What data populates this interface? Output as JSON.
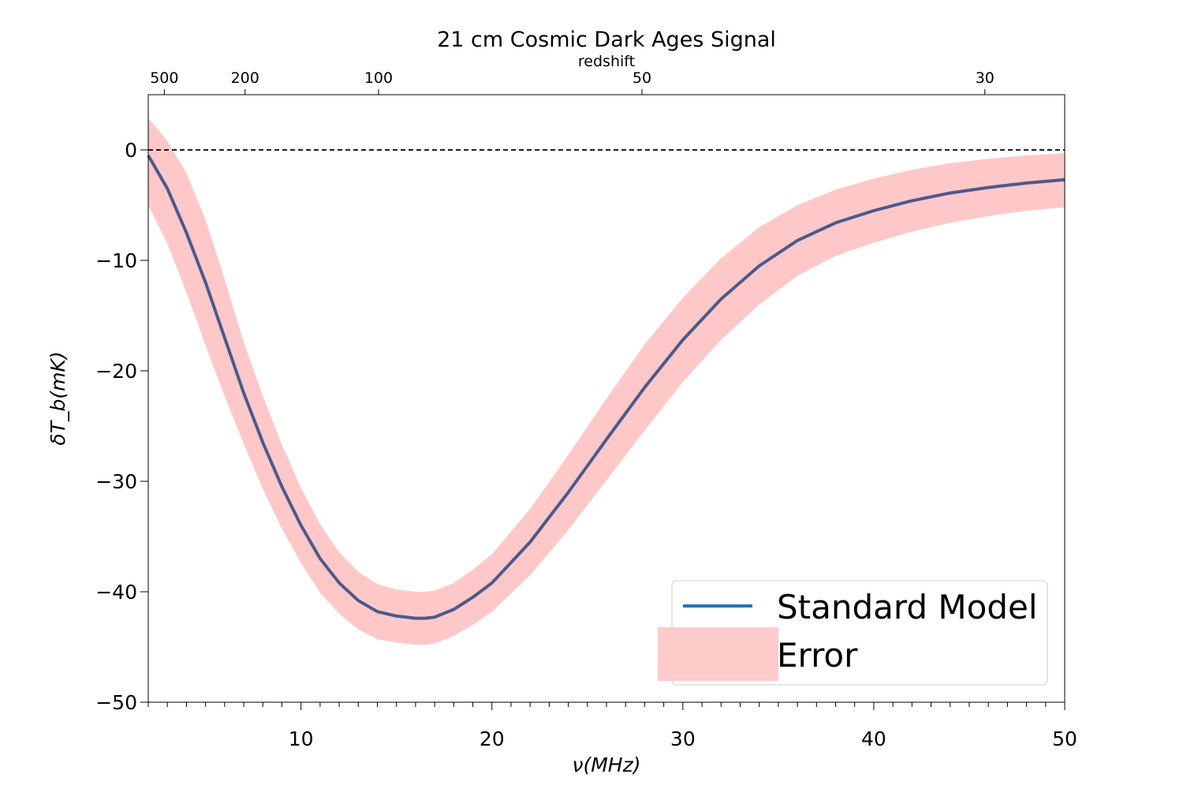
{
  "chart_data": {
    "type": "line",
    "title": "21 cm Cosmic Dark Ages Signal",
    "top_axis_label": "redshift",
    "xlabel": "ν(MHz)",
    "ylabel": "δT_b(mK)",
    "xlim": [
      2.0,
      50.0
    ],
    "ylim": [
      -50,
      5
    ],
    "x_ticks": [
      "10",
      "20",
      "30",
      "40",
      "50"
    ],
    "x_tick_values": [
      10,
      20,
      30,
      40,
      50
    ],
    "x_minor_step": 1,
    "y_ticks": [
      "0",
      "−10",
      "−20",
      "−30",
      "−40",
      "−50"
    ],
    "y_tick_values": [
      0,
      -10,
      -20,
      -30,
      -40,
      -50
    ],
    "top_ticks": [
      "500",
      "200",
      "100",
      "50",
      "30"
    ],
    "top_tick_freqs": [
      2.84,
      7.07,
      14.06,
      27.86,
      45.82
    ],
    "zero_line": {
      "y": 0,
      "style": "dashed"
    },
    "series": [
      {
        "name": "Standard Model",
        "color": "#4a5a8c",
        "legend_color": "#1f77b4",
        "x": [
          2,
          3,
          4,
          5,
          6,
          7,
          8,
          9,
          10,
          11,
          12,
          13,
          14,
          15,
          16,
          16.5,
          17,
          18,
          19,
          20,
          22,
          24,
          26,
          28,
          30,
          32,
          34,
          36,
          38,
          40,
          42,
          44,
          46,
          48,
          50
        ],
        "y": [
          -0.5,
          -3.5,
          -7.5,
          -12.0,
          -17.0,
          -22.0,
          -26.5,
          -30.5,
          -34.0,
          -37.0,
          -39.2,
          -40.8,
          -41.8,
          -42.2,
          -42.4,
          -42.4,
          -42.3,
          -41.6,
          -40.5,
          -39.2,
          -35.5,
          -31.0,
          -26.2,
          -21.5,
          -17.2,
          -13.5,
          -10.5,
          -8.2,
          -6.6,
          -5.5,
          -4.6,
          -3.9,
          -3.4,
          -3.0,
          -2.7
        ]
      },
      {
        "name": "Error",
        "type": "band",
        "color": "#ffc8c8",
        "x": [
          2,
          3,
          4,
          5,
          6,
          7,
          8,
          9,
          10,
          11,
          12,
          13,
          14,
          15,
          16,
          16.5,
          17,
          18,
          19,
          20,
          22,
          24,
          26,
          28,
          30,
          32,
          34,
          36,
          38,
          40,
          42,
          44,
          46,
          48,
          50
        ],
        "upper": [
          2.9,
          0.8,
          -2.1,
          -6.3,
          -11.7,
          -17.4,
          -22.3,
          -26.7,
          -30.6,
          -33.9,
          -36.4,
          -38.2,
          -39.3,
          -39.8,
          -40.0,
          -40.0,
          -39.9,
          -39.2,
          -38.0,
          -36.6,
          -32.5,
          -27.6,
          -22.5,
          -17.6,
          -13.4,
          -9.8,
          -7.0,
          -5.0,
          -3.6,
          -2.6,
          -1.8,
          -1.2,
          -0.8,
          -0.5,
          -0.3
        ],
        "lower": [
          -5.0,
          -8.5,
          -12.9,
          -17.7,
          -22.3,
          -26.6,
          -30.7,
          -34.3,
          -37.4,
          -40.1,
          -42.0,
          -43.4,
          -44.3,
          -44.6,
          -44.8,
          -44.8,
          -44.7,
          -44.0,
          -43.0,
          -41.8,
          -38.5,
          -34.4,
          -29.9,
          -25.4,
          -21.0,
          -17.2,
          -14.0,
          -11.4,
          -9.6,
          -8.4,
          -7.4,
          -6.6,
          -6.0,
          -5.5,
          -5.2
        ]
      }
    ],
    "legend": {
      "position": "lower right",
      "entries": [
        "Standard Model",
        "Error"
      ]
    }
  }
}
